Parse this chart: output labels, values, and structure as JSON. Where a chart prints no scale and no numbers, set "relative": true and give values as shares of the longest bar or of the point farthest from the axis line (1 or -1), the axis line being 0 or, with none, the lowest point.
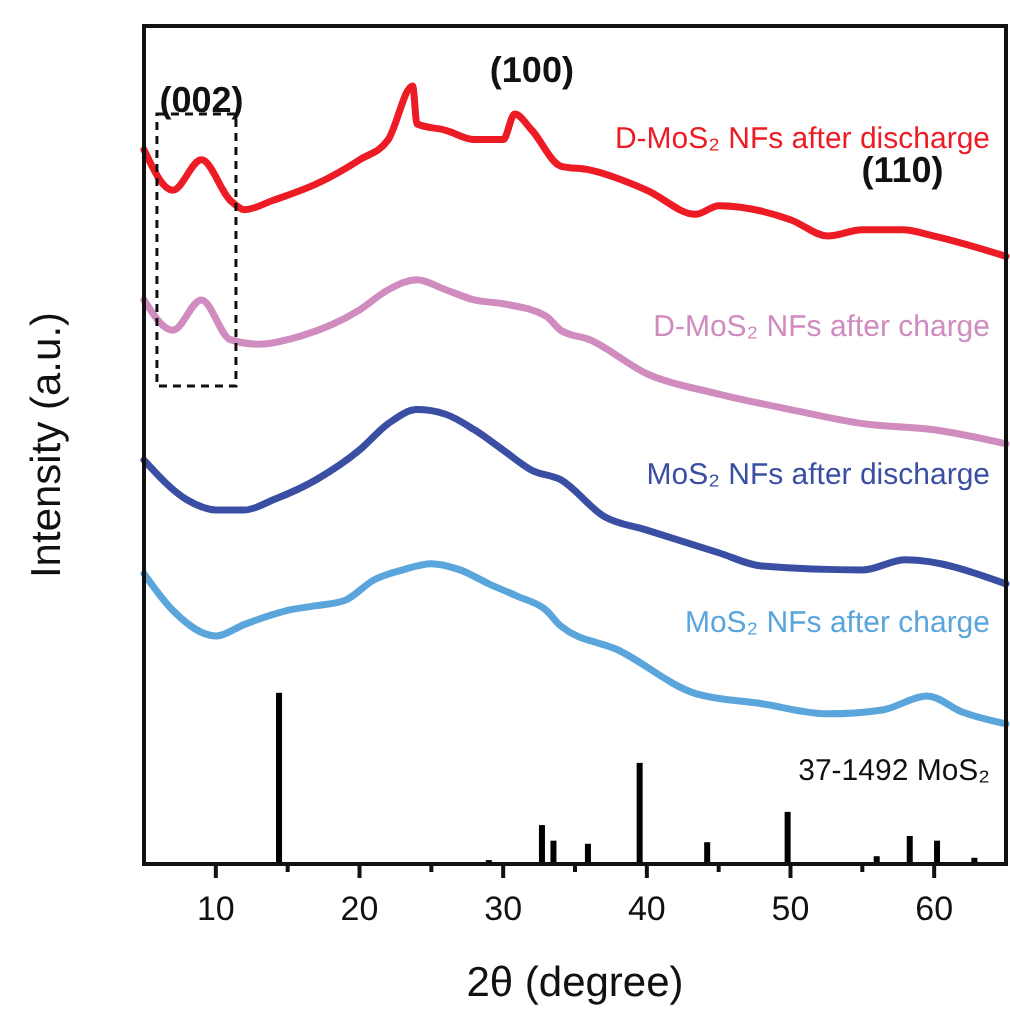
{
  "chart_data": {
    "type": "line",
    "relative": true,
    "xlabel": "2θ (degree)",
    "ylabel": "Intensity (a.u.)",
    "xlim": [
      5,
      65
    ],
    "xticks": [
      10,
      {
        "value": 15,
        "label": null
      },
      20,
      {
        "value": 25,
        "label": null
      },
      30,
      {
        "value": 35,
        "label": null
      },
      40,
      {
        "value": 45,
        "label": null
      },
      50,
      {
        "value": 55,
        "label": null
      },
      60
    ],
    "grid": false,
    "marker": "none",
    "line_style": "solid",
    "annotations": [
      {
        "text": "(002)",
        "x": 9,
        "y": 0.905
      },
      {
        "text": "(100)",
        "x": 32,
        "y": 0.943
      },
      {
        "text": "(110)",
        "x": 57.8,
        "y": 0.815
      }
    ],
    "series": [
      {
        "name": "D-MoS₂ NFs after discharge",
        "color": "#ed1c24",
        "x": [
          5,
          7,
          9,
          11,
          12,
          14,
          17,
          20,
          22,
          23.7,
          24,
          26,
          28,
          30,
          30.8,
          32,
          34,
          36,
          40,
          43.4,
          45,
          50,
          52.6,
          55,
          57.8,
          60,
          65
        ],
        "values": [
          0.918,
          0.866,
          0.905,
          0.853,
          0.841,
          0.853,
          0.874,
          0.905,
          0.931,
          1,
          0.951,
          0.943,
          0.931,
          0.931,
          0.964,
          0.943,
          0.897,
          0.892,
          0.866,
          0.835,
          0.846,
          0.828,
          0.807,
          0.815,
          0.815,
          0.807,
          0.781
        ]
      },
      {
        "name": "D-MoS₂ NFs after charge",
        "color": "#d08bbf",
        "x": [
          5,
          7,
          9,
          11,
          13,
          16,
          20,
          22,
          24,
          26,
          28,
          30,
          33,
          34,
          36,
          40,
          45,
          50,
          55,
          60,
          65
        ],
        "values": [
          0.725,
          0.686,
          0.725,
          0.674,
          0.668,
          0.679,
          0.712,
          0.738,
          0.751,
          0.738,
          0.725,
          0.72,
          0.704,
          0.686,
          0.674,
          0.63,
          0.604,
          0.584,
          0.566,
          0.558,
          0.54
        ]
      },
      {
        "name": "MoS₂ NFs after discharge",
        "color": "#3a4fa3",
        "x": [
          5,
          8,
          10,
          12,
          14,
          17,
          20,
          22,
          24,
          26,
          28,
          30,
          32,
          34,
          37,
          40,
          45,
          48,
          55,
          58,
          65
        ],
        "values": [
          0.519,
          0.468,
          0.455,
          0.455,
          0.468,
          0.494,
          0.532,
          0.566,
          0.584,
          0.578,
          0.558,
          0.532,
          0.506,
          0.494,
          0.447,
          0.429,
          0.4,
          0.383,
          0.378,
          0.391,
          0.36
        ]
      },
      {
        "name": "MoS₂ NFs after charge",
        "color": "#5aa5dc",
        "x": [
          5,
          7,
          10,
          12,
          15,
          17,
          19,
          21,
          23,
          25,
          27,
          29,
          31,
          33,
          34,
          38,
          43.4,
          48,
          52.6,
          56.4,
          59.5,
          62,
          65
        ],
        "values": [
          0.373,
          0.326,
          0.293,
          0.308,
          0.326,
          0.332,
          0.339,
          0.365,
          0.378,
          0.386,
          0.378,
          0.36,
          0.344,
          0.326,
          0.306,
          0.275,
          0.219,
          0.206,
          0.193,
          0.198,
          0.216,
          0.195,
          0.18
        ]
      },
      {
        "name": "37-1492 MoS₂",
        "type": "bar",
        "color": "#000000",
        "x": [
          14.4,
          29,
          32.7,
          33.5,
          35.9,
          39.5,
          44.2,
          49.8,
          56,
          58.3,
          60.2,
          62.8
        ],
        "values": [
          0.22,
          0.005,
          0.05,
          0.03,
          0.026,
          0.13,
          0.028,
          0.067,
          0.01,
          0.036,
          0.03,
          0.008
        ]
      }
    ]
  }
}
